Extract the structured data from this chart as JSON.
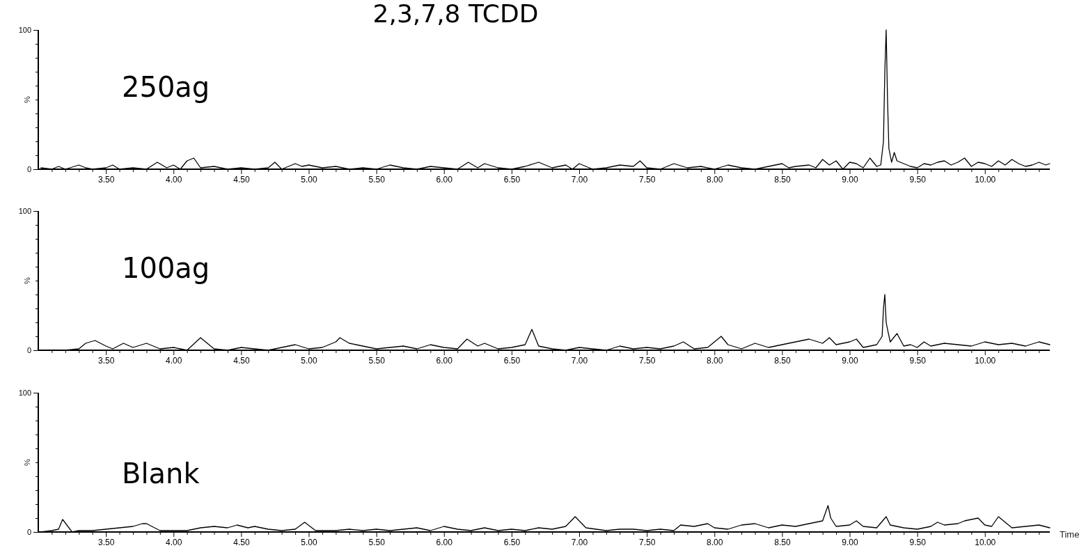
{
  "chart_data": [
    {
      "type": "line",
      "title": "2,3,7,8 TCDD",
      "ylabel": "%",
      "xlim": [
        3.0,
        10.48
      ],
      "ylim": [
        0,
        100
      ],
      "yticks": [
        {
          "value": 0,
          "label": "0"
        },
        {
          "value": 10,
          "label": null
        },
        {
          "value": 20,
          "label": null
        },
        {
          "value": 30,
          "label": null
        },
        {
          "value": 40,
          "label": null
        },
        {
          "value": 50,
          "label": null
        },
        {
          "value": 60,
          "label": null
        },
        {
          "value": 70,
          "label": null
        },
        {
          "value": 80,
          "label": null
        },
        {
          "value": 90,
          "label": null
        },
        {
          "value": 100,
          "label": "100"
        }
      ],
      "xticks": [
        {
          "value": 3.1,
          "label": null
        },
        {
          "value": 3.2,
          "label": null
        },
        {
          "value": 3.3,
          "label": null
        },
        {
          "value": 3.4,
          "label": null
        },
        {
          "value": 3.5,
          "label": "3.50"
        },
        {
          "value": 3.6,
          "label": null
        },
        {
          "value": 3.7,
          "label": null
        },
        {
          "value": 3.8,
          "label": null
        },
        {
          "value": 3.9,
          "label": null
        },
        {
          "value": 4.0,
          "label": "4.00"
        },
        {
          "value": 4.1,
          "label": null
        },
        {
          "value": 4.2,
          "label": null
        },
        {
          "value": 4.3,
          "label": null
        },
        {
          "value": 4.4,
          "label": null
        },
        {
          "value": 4.5,
          "label": "4.50"
        },
        {
          "value": 4.6,
          "label": null
        },
        {
          "value": 4.7,
          "label": null
        },
        {
          "value": 4.8,
          "label": null
        },
        {
          "value": 4.9,
          "label": null
        },
        {
          "value": 5.0,
          "label": "5.00"
        },
        {
          "value": 5.1,
          "label": null
        },
        {
          "value": 5.2,
          "label": null
        },
        {
          "value": 5.3,
          "label": null
        },
        {
          "value": 5.4,
          "label": null
        },
        {
          "value": 5.5,
          "label": "5.50"
        },
        {
          "value": 5.6,
          "label": null
        },
        {
          "value": 5.7,
          "label": null
        },
        {
          "value": 5.8,
          "label": null
        },
        {
          "value": 5.9,
          "label": null
        },
        {
          "value": 6.0,
          "label": "6.00"
        },
        {
          "value": 6.1,
          "label": null
        },
        {
          "value": 6.2,
          "label": null
        },
        {
          "value": 6.3,
          "label": null
        },
        {
          "value": 6.4,
          "label": null
        },
        {
          "value": 6.5,
          "label": "6.50"
        },
        {
          "value": 6.6,
          "label": null
        },
        {
          "value": 6.7,
          "label": null
        },
        {
          "value": 6.8,
          "label": null
        },
        {
          "value": 6.9,
          "label": null
        },
        {
          "value": 7.0,
          "label": "7.00"
        },
        {
          "value": 7.1,
          "label": null
        },
        {
          "value": 7.2,
          "label": null
        },
        {
          "value": 7.3,
          "label": null
        },
        {
          "value": 7.4,
          "label": null
        },
        {
          "value": 7.5,
          "label": "7.50"
        },
        {
          "value": 7.6,
          "label": null
        },
        {
          "value": 7.7,
          "label": null
        },
        {
          "value": 7.8,
          "label": null
        },
        {
          "value": 7.9,
          "label": null
        },
        {
          "value": 8.0,
          "label": "8.00"
        },
        {
          "value": 8.1,
          "label": null
        },
        {
          "value": 8.2,
          "label": null
        },
        {
          "value": 8.3,
          "label": null
        },
        {
          "value": 8.4,
          "label": null
        },
        {
          "value": 8.5,
          "label": "8.50"
        },
        {
          "value": 8.6,
          "label": null
        },
        {
          "value": 8.7,
          "label": null
        },
        {
          "value": 8.8,
          "label": null
        },
        {
          "value": 8.9,
          "label": null
        },
        {
          "value": 9.0,
          "label": "9.00"
        },
        {
          "value": 9.1,
          "label": null
        },
        {
          "value": 9.2,
          "label": null
        },
        {
          "value": 9.3,
          "label": null
        },
        {
          "value": 9.4,
          "label": null
        },
        {
          "value": 9.5,
          "label": "9.50"
        },
        {
          "value": 9.6,
          "label": null
        },
        {
          "value": 9.7,
          "label": null
        },
        {
          "value": 9.8,
          "label": null
        },
        {
          "value": 9.9,
          "label": null
        },
        {
          "value": 10.0,
          "label": "10.00"
        },
        {
          "value": 10.1,
          "label": null
        },
        {
          "value": 10.2,
          "label": null
        },
        {
          "value": 10.3,
          "label": null
        },
        {
          "value": 10.4,
          "label": null
        }
      ],
      "series": [
        {
          "name": "250ag",
          "color": "#000000",
          "x": [
            3.02,
            3.1,
            3.15,
            3.2,
            3.3,
            3.35,
            3.4,
            3.5,
            3.55,
            3.6,
            3.7,
            3.8,
            3.88,
            3.95,
            4.0,
            4.05,
            4.1,
            4.15,
            4.2,
            4.3,
            4.4,
            4.5,
            4.6,
            4.7,
            4.75,
            4.8,
            4.9,
            4.95,
            5.0,
            5.1,
            5.2,
            5.3,
            5.4,
            5.5,
            5.6,
            5.7,
            5.8,
            5.9,
            6.0,
            6.1,
            6.18,
            6.25,
            6.3,
            6.4,
            6.5,
            6.6,
            6.7,
            6.8,
            6.9,
            6.95,
            7.0,
            7.1,
            7.2,
            7.3,
            7.4,
            7.45,
            7.5,
            7.6,
            7.7,
            7.8,
            7.9,
            8.0,
            8.1,
            8.2,
            8.3,
            8.4,
            8.5,
            8.55,
            8.6,
            8.7,
            8.75,
            8.8,
            8.85,
            8.9,
            8.95,
            9.0,
            9.05,
            9.1,
            9.15,
            9.2,
            9.23,
            9.25,
            9.26,
            9.27,
            9.28,
            9.29,
            9.31,
            9.33,
            9.35,
            9.4,
            9.45,
            9.5,
            9.55,
            9.6,
            9.65,
            9.7,
            9.75,
            9.8,
            9.85,
            9.9,
            9.95,
            10.0,
            10.05,
            10.1,
            10.15,
            10.2,
            10.25,
            10.3,
            10.35,
            10.4,
            10.45,
            10.48
          ],
          "values": [
            1,
            0,
            2,
            0,
            3,
            1,
            0,
            1,
            3,
            0,
            1,
            0,
            5,
            1,
            3,
            0,
            6,
            8,
            1,
            2,
            0,
            1,
            0,
            1,
            5,
            0,
            4,
            2,
            3,
            1,
            2,
            0,
            1,
            0,
            3,
            1,
            0,
            2,
            1,
            0,
            5,
            1,
            4,
            1,
            0,
            2,
            5,
            1,
            3,
            0,
            4,
            0,
            1,
            3,
            2,
            6,
            1,
            0,
            4,
            1,
            2,
            0,
            3,
            1,
            0,
            2,
            4,
            1,
            2,
            3,
            1,
            7,
            3,
            6,
            0,
            5,
            4,
            1,
            8,
            2,
            3,
            20,
            70,
            100,
            50,
            15,
            5,
            12,
            6,
            4,
            2,
            1,
            4,
            3,
            5,
            6,
            3,
            5,
            8,
            2,
            5,
            4,
            2,
            6,
            3,
            7,
            4,
            2,
            3,
            5,
            3,
            4
          ]
        }
      ]
    },
    {
      "type": "line",
      "ylabel": "%",
      "xlim": [
        3.0,
        10.48
      ],
      "ylim": [
        0,
        100
      ],
      "yticks": [
        {
          "value": 0,
          "label": "0"
        },
        {
          "value": 10,
          "label": null
        },
        {
          "value": 20,
          "label": null
        },
        {
          "value": 30,
          "label": null
        },
        {
          "value": 40,
          "label": null
        },
        {
          "value": 50,
          "label": null
        },
        {
          "value": 60,
          "label": null
        },
        {
          "value": 70,
          "label": null
        },
        {
          "value": 80,
          "label": null
        },
        {
          "value": 90,
          "label": null
        },
        {
          "value": 100,
          "label": "100"
        }
      ],
      "xticks": [
        {
          "value": 3.1,
          "label": null
        },
        {
          "value": 3.2,
          "label": null
        },
        {
          "value": 3.3,
          "label": null
        },
        {
          "value": 3.4,
          "label": null
        },
        {
          "value": 3.5,
          "label": "3.50"
        },
        {
          "value": 3.6,
          "label": null
        },
        {
          "value": 3.7,
          "label": null
        },
        {
          "value": 3.8,
          "label": null
        },
        {
          "value": 3.9,
          "label": null
        },
        {
          "value": 4.0,
          "label": "4.00"
        },
        {
          "value": 4.1,
          "label": null
        },
        {
          "value": 4.2,
          "label": null
        },
        {
          "value": 4.3,
          "label": null
        },
        {
          "value": 4.4,
          "label": null
        },
        {
          "value": 4.5,
          "label": "4.50"
        },
        {
          "value": 4.6,
          "label": null
        },
        {
          "value": 4.7,
          "label": null
        },
        {
          "value": 4.8,
          "label": null
        },
        {
          "value": 4.9,
          "label": null
        },
        {
          "value": 5.0,
          "label": "5.00"
        },
        {
          "value": 5.1,
          "label": null
        },
        {
          "value": 5.2,
          "label": null
        },
        {
          "value": 5.3,
          "label": null
        },
        {
          "value": 5.4,
          "label": null
        },
        {
          "value": 5.5,
          "label": "5.50"
        },
        {
          "value": 5.6,
          "label": null
        },
        {
          "value": 5.7,
          "label": null
        },
        {
          "value": 5.8,
          "label": null
        },
        {
          "value": 5.9,
          "label": null
        },
        {
          "value": 6.0,
          "label": "6.00"
        },
        {
          "value": 6.1,
          "label": null
        },
        {
          "value": 6.2,
          "label": null
        },
        {
          "value": 6.3,
          "label": null
        },
        {
          "value": 6.4,
          "label": null
        },
        {
          "value": 6.5,
          "label": "6.50"
        },
        {
          "value": 6.6,
          "label": null
        },
        {
          "value": 6.7,
          "label": null
        },
        {
          "value": 6.8,
          "label": null
        },
        {
          "value": 6.9,
          "label": null
        },
        {
          "value": 7.0,
          "label": "7.00"
        },
        {
          "value": 7.1,
          "label": null
        },
        {
          "value": 7.2,
          "label": null
        },
        {
          "value": 7.3,
          "label": null
        },
        {
          "value": 7.4,
          "label": null
        },
        {
          "value": 7.5,
          "label": "7.50"
        },
        {
          "value": 7.6,
          "label": null
        },
        {
          "value": 7.7,
          "label": null
        },
        {
          "value": 7.8,
          "label": null
        },
        {
          "value": 7.9,
          "label": null
        },
        {
          "value": 8.0,
          "label": "8.00"
        },
        {
          "value": 8.1,
          "label": null
        },
        {
          "value": 8.2,
          "label": null
        },
        {
          "value": 8.3,
          "label": null
        },
        {
          "value": 8.4,
          "label": null
        },
        {
          "value": 8.5,
          "label": "8.50"
        },
        {
          "value": 8.6,
          "label": null
        },
        {
          "value": 8.7,
          "label": null
        },
        {
          "value": 8.8,
          "label": null
        },
        {
          "value": 8.9,
          "label": null
        },
        {
          "value": 9.0,
          "label": "9.00"
        },
        {
          "value": 9.1,
          "label": null
        },
        {
          "value": 9.2,
          "label": null
        },
        {
          "value": 9.3,
          "label": null
        },
        {
          "value": 9.4,
          "label": null
        },
        {
          "value": 9.5,
          "label": "9.50"
        },
        {
          "value": 9.6,
          "label": null
        },
        {
          "value": 9.7,
          "label": null
        },
        {
          "value": 9.8,
          "label": null
        },
        {
          "value": 9.9,
          "label": null
        },
        {
          "value": 10.0,
          "label": "10.00"
        },
        {
          "value": 10.1,
          "label": null
        },
        {
          "value": 10.2,
          "label": null
        },
        {
          "value": 10.3,
          "label": null
        },
        {
          "value": 10.4,
          "label": null
        }
      ],
      "series": [
        {
          "name": "100ag",
          "color": "#000000",
          "x": [
            3.02,
            3.1,
            3.2,
            3.3,
            3.35,
            3.42,
            3.5,
            3.55,
            3.63,
            3.7,
            3.8,
            3.9,
            4.0,
            4.1,
            4.2,
            4.3,
            4.4,
            4.5,
            4.6,
            4.7,
            4.8,
            4.9,
            5.0,
            5.1,
            5.2,
            5.23,
            5.3,
            5.4,
            5.5,
            5.6,
            5.7,
            5.8,
            5.9,
            6.0,
            6.1,
            6.17,
            6.25,
            6.3,
            6.4,
            6.5,
            6.6,
            6.65,
            6.7,
            6.8,
            6.9,
            7.0,
            7.1,
            7.2,
            7.3,
            7.4,
            7.5,
            7.6,
            7.7,
            7.77,
            7.85,
            7.95,
            8.05,
            8.1,
            8.2,
            8.3,
            8.4,
            8.5,
            8.6,
            8.7,
            8.8,
            8.85,
            8.9,
            9.0,
            9.05,
            9.1,
            9.15,
            9.2,
            9.24,
            9.25,
            9.26,
            9.27,
            9.28,
            9.3,
            9.35,
            9.4,
            9.45,
            9.5,
            9.55,
            9.6,
            9.7,
            9.8,
            9.9,
            10.0,
            10.1,
            10.2,
            10.3,
            10.4,
            10.48
          ],
          "values": [
            0,
            0,
            0,
            1,
            5,
            7,
            3,
            1,
            5,
            2,
            5,
            1,
            2,
            0,
            9,
            1,
            0,
            2,
            1,
            0,
            2,
            4,
            1,
            2,
            6,
            9,
            5,
            3,
            1,
            2,
            3,
            1,
            4,
            2,
            1,
            8,
            3,
            5,
            1,
            2,
            4,
            15,
            3,
            1,
            0,
            2,
            1,
            0,
            3,
            1,
            2,
            1,
            3,
            6,
            1,
            2,
            10,
            4,
            1,
            5,
            2,
            4,
            6,
            8,
            5,
            9,
            4,
            6,
            8,
            2,
            3,
            4,
            10,
            30,
            40,
            20,
            15,
            6,
            12,
            3,
            4,
            2,
            6,
            3,
            5,
            4,
            3,
            6,
            4,
            5,
            3,
            6,
            4
          ]
        }
      ]
    },
    {
      "type": "line",
      "xlabel": "Time",
      "ylabel": "%",
      "xlim": [
        3.0,
        10.48
      ],
      "ylim": [
        0,
        100
      ],
      "yticks": [
        {
          "value": 0,
          "label": "0"
        },
        {
          "value": 10,
          "label": null
        },
        {
          "value": 20,
          "label": null
        },
        {
          "value": 30,
          "label": null
        },
        {
          "value": 40,
          "label": null
        },
        {
          "value": 50,
          "label": null
        },
        {
          "value": 60,
          "label": null
        },
        {
          "value": 70,
          "label": null
        },
        {
          "value": 80,
          "label": null
        },
        {
          "value": 90,
          "label": null
        },
        {
          "value": 100,
          "label": "100"
        }
      ],
      "xticks": [
        {
          "value": 3.1,
          "label": null
        },
        {
          "value": 3.2,
          "label": null
        },
        {
          "value": 3.3,
          "label": null
        },
        {
          "value": 3.4,
          "label": null
        },
        {
          "value": 3.5,
          "label": "3.50"
        },
        {
          "value": 3.6,
          "label": null
        },
        {
          "value": 3.7,
          "label": null
        },
        {
          "value": 3.8,
          "label": null
        },
        {
          "value": 3.9,
          "label": null
        },
        {
          "value": 4.0,
          "label": "4.00"
        },
        {
          "value": 4.1,
          "label": null
        },
        {
          "value": 4.2,
          "label": null
        },
        {
          "value": 4.3,
          "label": null
        },
        {
          "value": 4.4,
          "label": null
        },
        {
          "value": 4.5,
          "label": "4.50"
        },
        {
          "value": 4.6,
          "label": null
        },
        {
          "value": 4.7,
          "label": null
        },
        {
          "value": 4.8,
          "label": null
        },
        {
          "value": 4.9,
          "label": null
        },
        {
          "value": 5.0,
          "label": "5.00"
        },
        {
          "value": 5.1,
          "label": null
        },
        {
          "value": 5.2,
          "label": null
        },
        {
          "value": 5.3,
          "label": null
        },
        {
          "value": 5.4,
          "label": null
        },
        {
          "value": 5.5,
          "label": "5.50"
        },
        {
          "value": 5.6,
          "label": null
        },
        {
          "value": 5.7,
          "label": null
        },
        {
          "value": 5.8,
          "label": null
        },
        {
          "value": 5.9,
          "label": null
        },
        {
          "value": 6.0,
          "label": "6.00"
        },
        {
          "value": 6.1,
          "label": null
        },
        {
          "value": 6.2,
          "label": null
        },
        {
          "value": 6.3,
          "label": null
        },
        {
          "value": 6.4,
          "label": null
        },
        {
          "value": 6.5,
          "label": "6.50"
        },
        {
          "value": 6.6,
          "label": null
        },
        {
          "value": 6.7,
          "label": null
        },
        {
          "value": 6.8,
          "label": null
        },
        {
          "value": 6.9,
          "label": null
        },
        {
          "value": 7.0,
          "label": "7.00"
        },
        {
          "value": 7.1,
          "label": null
        },
        {
          "value": 7.2,
          "label": null
        },
        {
          "value": 7.3,
          "label": null
        },
        {
          "value": 7.4,
          "label": null
        },
        {
          "value": 7.5,
          "label": "7.50"
        },
        {
          "value": 7.6,
          "label": null
        },
        {
          "value": 7.7,
          "label": null
        },
        {
          "value": 7.8,
          "label": null
        },
        {
          "value": 7.9,
          "label": null
        },
        {
          "value": 8.0,
          "label": "8.00"
        },
        {
          "value": 8.1,
          "label": null
        },
        {
          "value": 8.2,
          "label": null
        },
        {
          "value": 8.3,
          "label": null
        },
        {
          "value": 8.4,
          "label": null
        },
        {
          "value": 8.5,
          "label": "8.50"
        },
        {
          "value": 8.6,
          "label": null
        },
        {
          "value": 8.7,
          "label": null
        },
        {
          "value": 8.8,
          "label": null
        },
        {
          "value": 8.9,
          "label": null
        },
        {
          "value": 9.0,
          "label": "9.00"
        },
        {
          "value": 9.1,
          "label": null
        },
        {
          "value": 9.2,
          "label": null
        },
        {
          "value": 9.3,
          "label": null
        },
        {
          "value": 9.4,
          "label": null
        },
        {
          "value": 9.5,
          "label": "9.50"
        },
        {
          "value": 9.6,
          "label": null
        },
        {
          "value": 9.7,
          "label": null
        },
        {
          "value": 9.8,
          "label": null
        },
        {
          "value": 9.9,
          "label": null
        },
        {
          "value": 10.0,
          "label": "10.00"
        },
        {
          "value": 10.1,
          "label": null
        },
        {
          "value": 10.2,
          "label": null
        },
        {
          "value": 10.3,
          "label": null
        },
        {
          "value": 10.4,
          "label": null
        }
      ],
      "series": [
        {
          "name": "Blank",
          "color": "#000000",
          "x": [
            3.02,
            3.1,
            3.15,
            3.18,
            3.25,
            3.3,
            3.4,
            3.5,
            3.6,
            3.7,
            3.77,
            3.8,
            3.9,
            4.0,
            4.1,
            4.2,
            4.3,
            4.4,
            4.47,
            4.55,
            4.6,
            4.7,
            4.8,
            4.9,
            4.97,
            5.05,
            5.2,
            5.3,
            5.4,
            5.5,
            5.6,
            5.7,
            5.8,
            5.9,
            6.0,
            6.1,
            6.2,
            6.3,
            6.4,
            6.5,
            6.6,
            6.7,
            6.8,
            6.9,
            6.97,
            7.05,
            7.2,
            7.3,
            7.4,
            7.5,
            7.6,
            7.7,
            7.75,
            7.85,
            7.95,
            8.0,
            8.1,
            8.2,
            8.3,
            8.4,
            8.5,
            8.6,
            8.7,
            8.8,
            8.84,
            8.86,
            8.9,
            9.0,
            9.05,
            9.1,
            9.2,
            9.27,
            9.3,
            9.4,
            9.5,
            9.6,
            9.65,
            9.7,
            9.8,
            9.85,
            9.9,
            9.95,
            10.0,
            10.05,
            10.1,
            10.2,
            10.3,
            10.4,
            10.48
          ],
          "values": [
            0,
            1,
            2,
            9,
            0,
            1,
            1,
            2,
            3,
            4,
            6,
            6,
            1,
            1,
            1,
            3,
            4,
            3,
            5,
            3,
            4,
            2,
            1,
            2,
            7,
            1,
            1,
            2,
            1,
            2,
            1,
            2,
            3,
            1,
            4,
            2,
            1,
            3,
            1,
            2,
            1,
            3,
            2,
            4,
            11,
            3,
            1,
            2,
            2,
            1,
            2,
            1,
            5,
            4,
            6,
            3,
            2,
            5,
            6,
            3,
            5,
            4,
            6,
            8,
            19,
            10,
            4,
            5,
            8,
            4,
            3,
            11,
            5,
            3,
            2,
            4,
            7,
            5,
            6,
            8,
            9,
            10,
            5,
            4,
            11,
            3,
            4,
            5,
            3
          ]
        }
      ]
    }
  ]
}
